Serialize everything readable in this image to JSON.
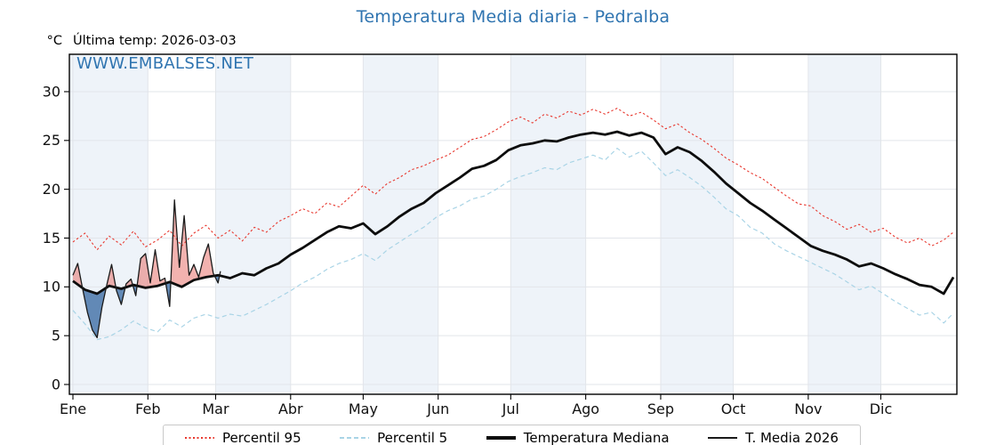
{
  "title": "Temperatura Media diaria - Pedralba",
  "header": {
    "unit": "°C",
    "last_temp": "Última temp: 2026-03-03"
  },
  "watermark": "WWW.EMBALSES.NET",
  "colors": {
    "title": "#2f74b0",
    "watermark": "#2f74b0",
    "band": "#eef3f9",
    "grid": "#e2e5ea",
    "spine": "#000000",
    "tick_label": "#111111",
    "p95": "#e8382f",
    "p5": "#a9d4e6",
    "median": "#0d0d0d",
    "t2026": "#1a1a1a",
    "fill_above": "rgba(232,115,110,0.55)",
    "fill_below": "rgba(62,110,165,0.8)",
    "legend_border": "#c9c9c9"
  },
  "legend": {
    "items": [
      {
        "label": "Percentil 95",
        "kind": "dash-fine",
        "color": "#e8382f"
      },
      {
        "label": "Percentil 5",
        "kind": "dash",
        "color": "#a9d4e6"
      },
      {
        "label": "Temperatura Mediana",
        "kind": "solid-thick",
        "color": "#0d0d0d"
      },
      {
        "label": "T. Media 2026",
        "kind": "solid-thin",
        "color": "#1a1a1a"
      }
    ]
  },
  "chart_data": {
    "type": "line",
    "title": "Temperatura Media diaria - Pedralba",
    "xlabel": "",
    "ylabel": "°C",
    "yticks": [
      0,
      5,
      10,
      15,
      20,
      25,
      30
    ],
    "ylim_view": [
      -1.0,
      33.9
    ],
    "grid": true,
    "legend_position": "bottom",
    "x_tick_labels": [
      "Ene",
      "Feb",
      "Mar",
      "Abr",
      "May",
      "Jun",
      "Jul",
      "Ago",
      "Sep",
      "Oct",
      "Nov",
      "Dic"
    ],
    "month_start_day": [
      1,
      32,
      60,
      91,
      121,
      152,
      182,
      213,
      244,
      274,
      305,
      335
    ],
    "days_in_year": 365,
    "shaded_months": [
      "Ene",
      "Mar",
      "May",
      "Jul",
      "Sep",
      "Nov"
    ],
    "series": [
      {
        "name": "Percentil 95",
        "style": "dashed",
        "color": "#e8382f",
        "width": 1.1,
        "dash": "2.5,2.5",
        "days": [
          1,
          6,
          11,
          16,
          21,
          26,
          31,
          36,
          41,
          46,
          51,
          56,
          61,
          66,
          71,
          76,
          81,
          86,
          91,
          96,
          101,
          106,
          111,
          116,
          121,
          126,
          131,
          136,
          141,
          146,
          151,
          156,
          161,
          166,
          171,
          176,
          181,
          186,
          191,
          196,
          201,
          206,
          211,
          216,
          221,
          226,
          231,
          236,
          241,
          246,
          251,
          256,
          261,
          266,
          271,
          276,
          281,
          286,
          291,
          296,
          301,
          306,
          311,
          316,
          321,
          326,
          331,
          336,
          341,
          346,
          351,
          356,
          361,
          365
        ],
        "values": [
          14.6,
          15.5,
          13.8,
          15.2,
          14.3,
          15.7,
          14.1,
          14.8,
          15.8,
          14.2,
          15.5,
          16.3,
          15.0,
          15.8,
          14.7,
          16.1,
          15.6,
          16.7,
          17.3,
          18.0,
          17.5,
          18.6,
          18.2,
          19.3,
          20.4,
          19.5,
          20.6,
          21.2,
          22.0,
          22.4,
          23.0,
          23.5,
          24.3,
          25.1,
          25.4,
          26.1,
          26.9,
          27.4,
          26.8,
          27.7,
          27.3,
          28.0,
          27.6,
          28.2,
          27.7,
          28.3,
          27.5,
          27.9,
          27.1,
          26.2,
          26.7,
          25.8,
          25.1,
          24.2,
          23.2,
          22.5,
          21.7,
          21.1,
          20.2,
          19.3,
          18.5,
          18.3,
          17.3,
          16.7,
          15.9,
          16.4,
          15.6,
          16.0,
          15.1,
          14.5,
          15.0,
          14.2,
          14.8,
          15.6
        ]
      },
      {
        "name": "Percentil 5",
        "style": "dashed",
        "color": "#a9d4e6",
        "width": 1.2,
        "dash": "5,3.5",
        "days": [
          1,
          6,
          11,
          16,
          21,
          26,
          31,
          36,
          41,
          46,
          51,
          56,
          61,
          66,
          71,
          76,
          81,
          86,
          91,
          96,
          101,
          106,
          111,
          116,
          121,
          126,
          131,
          136,
          141,
          146,
          151,
          156,
          161,
          166,
          171,
          176,
          181,
          186,
          191,
          196,
          201,
          206,
          211,
          216,
          221,
          226,
          231,
          236,
          241,
          246,
          251,
          256,
          261,
          266,
          271,
          276,
          281,
          286,
          291,
          296,
          301,
          306,
          311,
          316,
          321,
          326,
          331,
          336,
          341,
          346,
          351,
          356,
          361,
          365
        ],
        "values": [
          7.6,
          6.2,
          4.6,
          4.9,
          5.6,
          6.5,
          5.8,
          5.4,
          6.6,
          5.9,
          6.8,
          7.2,
          6.8,
          7.2,
          7.0,
          7.6,
          8.2,
          8.9,
          9.6,
          10.4,
          11.0,
          11.8,
          12.4,
          12.8,
          13.4,
          12.7,
          13.8,
          14.6,
          15.4,
          16.1,
          17.1,
          17.8,
          18.3,
          19.0,
          19.3,
          20.0,
          20.8,
          21.3,
          21.7,
          22.2,
          22.0,
          22.7,
          23.1,
          23.5,
          23.0,
          24.2,
          23.3,
          23.9,
          22.7,
          21.4,
          22.0,
          21.2,
          20.3,
          19.2,
          18.0,
          17.3,
          16.1,
          15.5,
          14.4,
          13.7,
          13.1,
          12.5,
          11.9,
          11.3,
          10.5,
          9.7,
          10.1,
          9.3,
          8.5,
          7.8,
          7.1,
          7.4,
          6.3,
          7.3
        ]
      },
      {
        "name": "Temperatura Mediana",
        "style": "solid",
        "color": "#0d0d0d",
        "width": 2.8,
        "dash": null,
        "days": [
          1,
          6,
          11,
          16,
          21,
          26,
          31,
          36,
          41,
          46,
          51,
          56,
          61,
          66,
          71,
          76,
          81,
          86,
          91,
          96,
          101,
          106,
          111,
          116,
          121,
          126,
          131,
          136,
          141,
          146,
          151,
          156,
          161,
          166,
          171,
          176,
          181,
          186,
          191,
          196,
          201,
          206,
          211,
          216,
          221,
          226,
          231,
          236,
          241,
          246,
          251,
          256,
          261,
          266,
          271,
          276,
          281,
          286,
          291,
          296,
          301,
          306,
          311,
          316,
          321,
          326,
          331,
          336,
          341,
          346,
          351,
          356,
          361,
          365
        ],
        "values": [
          10.6,
          9.7,
          9.3,
          10.1,
          9.8,
          10.2,
          9.9,
          10.1,
          10.5,
          10.0,
          10.7,
          11.0,
          11.2,
          10.9,
          11.4,
          11.2,
          11.9,
          12.4,
          13.3,
          14.0,
          14.8,
          15.6,
          16.2,
          16.0,
          16.5,
          15.4,
          16.2,
          17.2,
          18.0,
          18.6,
          19.6,
          20.4,
          21.2,
          22.1,
          22.4,
          23.0,
          24.0,
          24.5,
          24.7,
          25.0,
          24.9,
          25.3,
          25.6,
          25.8,
          25.6,
          25.9,
          25.5,
          25.8,
          25.3,
          23.6,
          24.3,
          23.8,
          22.9,
          21.8,
          20.6,
          19.6,
          18.6,
          17.8,
          16.9,
          16.0,
          15.1,
          14.2,
          13.7,
          13.3,
          12.8,
          12.1,
          12.4,
          11.9,
          11.3,
          10.8,
          10.2,
          10.0,
          9.3,
          11.0
        ]
      },
      {
        "name": "T. Media 2026",
        "style": "solid",
        "color": "#1a1a1a",
        "width": 1.3,
        "dash": null,
        "days": [
          1,
          3,
          5,
          7,
          9,
          11,
          13,
          15,
          17,
          19,
          21,
          23,
          25,
          27,
          29,
          31,
          33,
          35,
          37,
          39,
          41,
          43,
          45,
          47,
          49,
          51,
          53,
          55,
          57,
          59,
          61,
          62
        ],
        "values": [
          11.2,
          12.4,
          9.8,
          7.4,
          5.6,
          4.8,
          7.9,
          10.2,
          12.3,
          9.6,
          8.2,
          10.3,
          10.8,
          9.1,
          12.9,
          13.4,
          10.4,
          13.8,
          10.6,
          10.9,
          8.0,
          18.9,
          12.0,
          17.3,
          11.2,
          12.3,
          11.0,
          13.0,
          14.4,
          11.4,
          10.4,
          11.6
        ]
      }
    ],
    "fill_between": {
      "upper": "T. Media 2026",
      "baseline": "Temperatura Mediana",
      "above_color": "rgba(232,115,110,0.55)",
      "below_color": "rgba(62,110,165,0.8)"
    }
  }
}
